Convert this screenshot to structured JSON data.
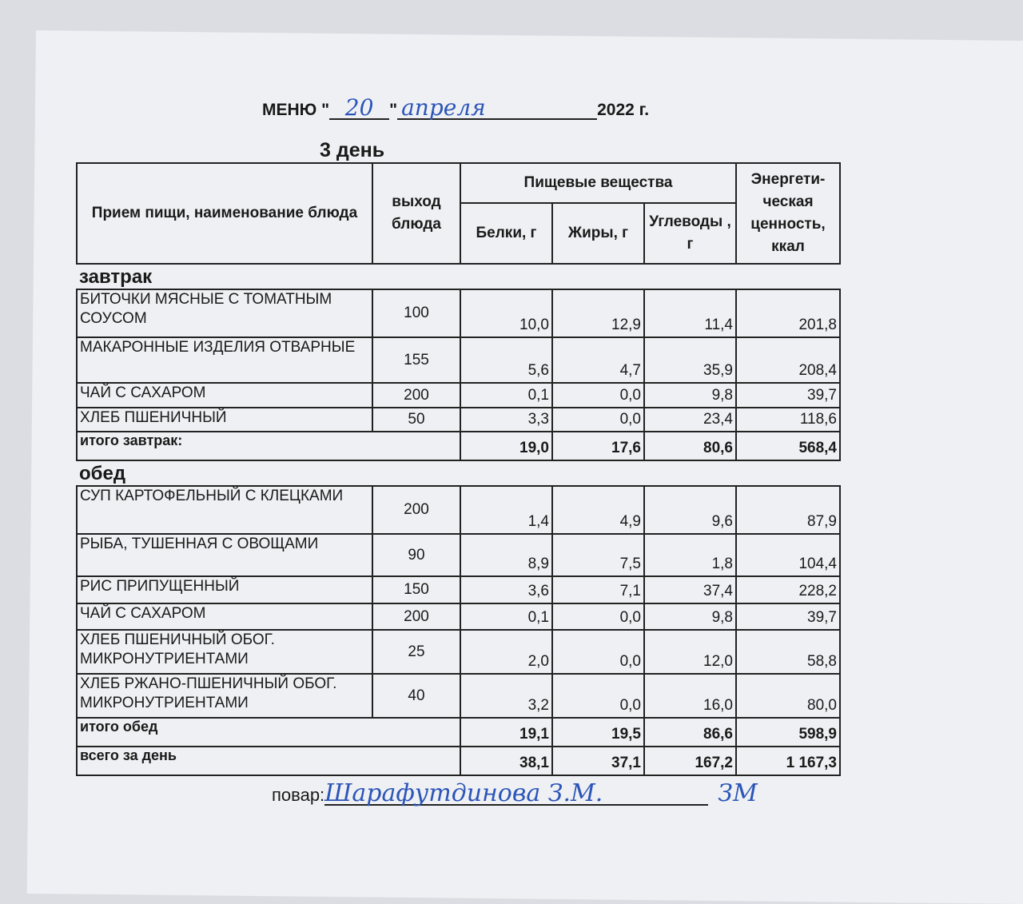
{
  "title": {
    "prefix": "МЕНЮ \"",
    "day_hand": "20",
    "mid": "\"",
    "month_hand": "апреля",
    "year": "2022 г."
  },
  "subtitle": "3 день",
  "headers": {
    "dish": "Прием пищи, наименование блюда",
    "output": "выход блюда",
    "nutrients": "Пищевые вещества",
    "protein": "Белки, г",
    "fat": "Жиры, г",
    "carbs": "Углеводы , г",
    "energy": "Энергети- ческая ценность, ккал"
  },
  "breakfast": {
    "label": "завтрак",
    "rows": [
      {
        "name": "БИТОЧКИ МЯСНЫЕ С ТОМАТНЫМ СОУСОМ",
        "output": "100",
        "protein": "10,0",
        "fat": "12,9",
        "carbs": "11,4",
        "energy": "201,8"
      },
      {
        "name": "МАКАРОННЫЕ ИЗДЕЛИЯ ОТВАРНЫЕ",
        "output": "155",
        "protein": "5,6",
        "fat": "4,7",
        "carbs": "35,9",
        "energy": "208,4"
      },
      {
        "name": "ЧАЙ С САХАРОМ",
        "output": "200",
        "protein": "0,1",
        "fat": "0,0",
        "carbs": "9,8",
        "energy": "39,7"
      },
      {
        "name": "ХЛЕБ ПШЕНИЧНЫЙ",
        "output": "50",
        "protein": "3,3",
        "fat": "0,0",
        "carbs": "23,4",
        "energy": "118,6"
      }
    ],
    "total": {
      "label": "итого завтрак:",
      "protein": "19,0",
      "fat": "17,6",
      "carbs": "80,6",
      "energy": "568,4"
    }
  },
  "lunch": {
    "label": "обед",
    "rows": [
      {
        "name": "СУП КАРТОФЕЛЬНЫЙ С КЛЕЦКАМИ",
        "output": "200",
        "protein": "1,4",
        "fat": "4,9",
        "carbs": "9,6",
        "energy": "87,9"
      },
      {
        "name": "РЫБА, ТУШЕННАЯ  С ОВОЩАМИ",
        "output": "90",
        "protein": "8,9",
        "fat": "7,5",
        "carbs": "1,8",
        "energy": "104,4"
      },
      {
        "name": "РИС ПРИПУЩЕННЫЙ",
        "output": "150",
        "protein": "3,6",
        "fat": "7,1",
        "carbs": "37,4",
        "energy": "228,2"
      },
      {
        "name": "ЧАЙ С САХАРОМ",
        "output": "200",
        "protein": "0,1",
        "fat": "0,0",
        "carbs": "9,8",
        "energy": "39,7"
      },
      {
        "name": "ХЛЕБ ПШЕНИЧНЫЙ ОБОГ. МИКРОНУТРИЕНТАМИ",
        "output": "25",
        "protein": "2,0",
        "fat": "0,0",
        "carbs": "12,0",
        "energy": "58,8"
      },
      {
        "name": "ХЛЕБ РЖАНО-ПШЕНИЧНЫЙ ОБОГ. МИКРОНУТРИЕНТАМИ",
        "output": "40",
        "protein": "3,2",
        "fat": "0,0",
        "carbs": "16,0",
        "energy": "80,0"
      }
    ],
    "total": {
      "label": "итого обед",
      "protein": "19,1",
      "fat": "19,5",
      "carbs": "86,6",
      "energy": "598,9"
    }
  },
  "day_total": {
    "label": "всего за день",
    "protein": "38,1",
    "fat": "37,1",
    "carbs": "167,2",
    "energy": "1 167,3"
  },
  "cook": {
    "label": "повар:",
    "name_hand": "Шарафутдинова З.М.",
    "signature": "ЗМ"
  }
}
